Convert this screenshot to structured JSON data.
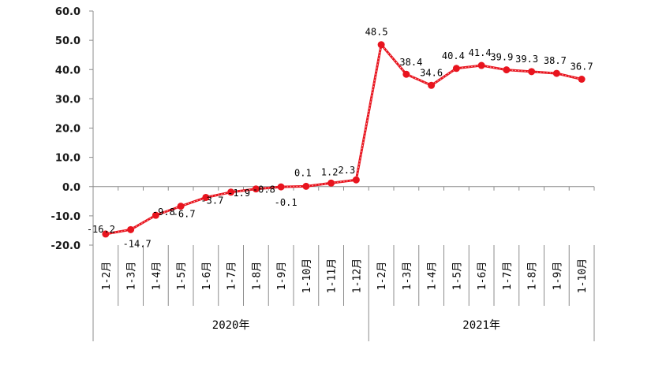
{
  "chart_data": {
    "type": "line",
    "title": "",
    "xlabel": "",
    "ylabel": "",
    "ylim": [
      -20,
      60
    ],
    "yticks": [
      "60.0",
      "50.0",
      "40.0",
      "30.0",
      "20.0",
      "10.0",
      "0.0",
      "-10.0",
      "-20.0"
    ],
    "grid": false,
    "legend": null,
    "groups": [
      {
        "label": "2020年",
        "start": 0,
        "count": 11
      },
      {
        "label": "2021年",
        "start": 11,
        "count": 9
      }
    ],
    "categories": [
      "1-2月",
      "1-3月",
      "1-4月",
      "1-5月",
      "1-6月",
      "1-7月",
      "1-8月",
      "1-9月",
      "1-10月",
      "1-11月",
      "1-12月",
      "1-2月",
      "1-3月",
      "1-4月",
      "1-5月",
      "1-6月",
      "1-7月",
      "1-8月",
      "1-9月",
      "1-10月"
    ],
    "series": [
      {
        "name": "",
        "color": "#e8141e",
        "values": [
          -16.2,
          -14.7,
          -9.8,
          -6.7,
          -3.7,
          -1.9,
          -0.8,
          -0.1,
          0.1,
          1.2,
          2.3,
          48.5,
          38.4,
          34.6,
          40.4,
          41.4,
          39.9,
          39.3,
          38.7,
          36.7
        ],
        "labels": [
          "-16.2",
          "-14.7",
          "-9.8",
          "-6.7",
          "-3.7",
          "-1.9",
          "-0.8",
          "-0.1",
          "0.1",
          "1.2",
          "2.3",
          "48.5",
          "38.4",
          "34.6",
          "40.4",
          "41.4",
          "39.9",
          "39.3",
          "38.7",
          "36.7"
        ]
      }
    ]
  }
}
